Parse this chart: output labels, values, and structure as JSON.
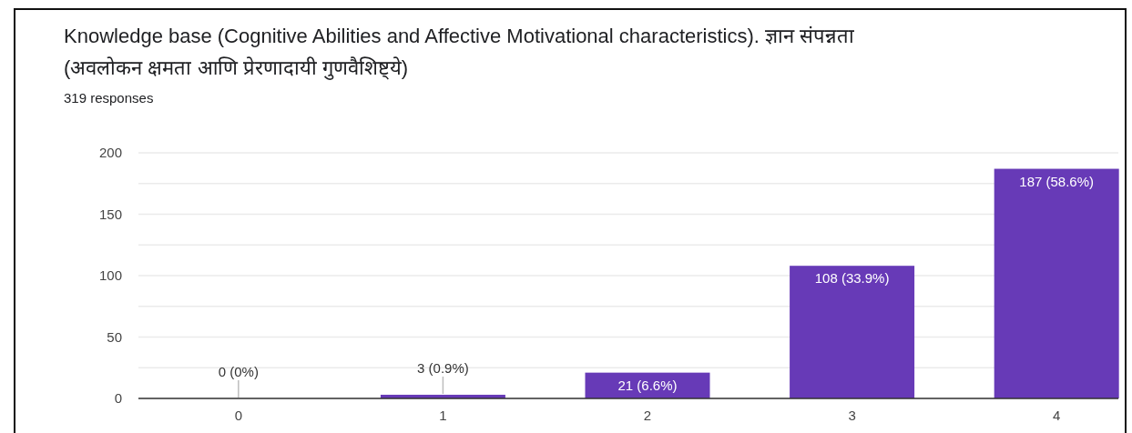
{
  "chart_data": {
    "type": "bar",
    "title": "Knowledge base (Cognitive Abilities and Affective Motivational characteristics). ज्ञान संपन्नता (अवलोकन क्षमता आणि प्रेरणादायी गुणवैशिष्ट्ये)",
    "subtitle": "319 responses",
    "categories": [
      "0",
      "1",
      "2",
      "3",
      "4"
    ],
    "values": [
      0,
      3,
      21,
      108,
      187
    ],
    "color": "#673ab7",
    "value_labels": [
      "0 (0%)",
      "3 (0.9%)",
      "21 (6.6%)",
      "108 (33.9%)",
      "187 (58.6%)"
    ],
    "ylim": [
      0,
      200
    ],
    "yticks": [
      0,
      {
        "value": 25,
        "label": null
      },
      50,
      {
        "value": 75,
        "label": null
      },
      100,
      {
        "value": 125,
        "label": null
      },
      150,
      {
        "value": 175,
        "label": null
      },
      200
    ],
    "grid": "y"
  }
}
